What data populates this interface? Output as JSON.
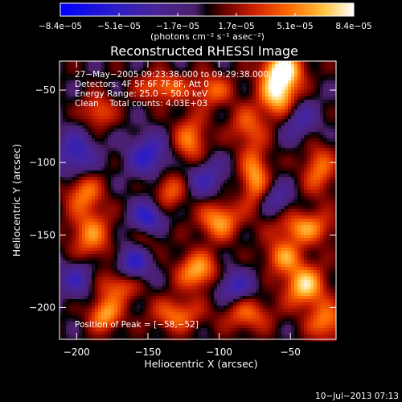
{
  "chart_data": {
    "type": "heatmap",
    "title": "Reconstructed RHESSI Image",
    "xlabel": "Heliocentric X (arcsec)",
    "ylabel": "Heliocentric Y (arcsec)",
    "xlim": [
      -212,
      -18
    ],
    "ylim": [
      -222,
      -30
    ],
    "x_ticks": [
      -200,
      -150,
      -100,
      -50
    ],
    "y_ticks": [
      -200,
      -150,
      -100,
      -50
    ],
    "x_tick_labels": [
      "−200",
      "−150",
      "−100",
      "−50"
    ],
    "y_tick_labels": [
      "−200",
      "−150",
      "−100",
      "−50"
    ],
    "colorbar": {
      "ticks": [
        "−8.4e−05",
        "−5.1e−05",
        "−1.7e−05",
        "1.7e−05",
        "5.1e−05",
        "8.4e−05"
      ],
      "range": [
        -8.4e-05,
        8.4e-05
      ],
      "unit_label": "(photons cm⁻² s⁻¹ asec⁻²)"
    },
    "annotations": [
      "27−May−2005 09:23:38.000 to 09:29:38.000",
      "Detectors: 4F 5F 6F 7F 8F, Att 0",
      "Energy Range: 25.0 − 50.0 keV",
      "Clean    Total counts: 4.03E+03"
    ],
    "peak_label": "Position of Peak = [−58,−52]",
    "peak": [
      -58,
      -52
    ],
    "sources": [
      {
        "x": -58,
        "y": -52,
        "amp": 1.0,
        "sx": 9,
        "sy": 12
      },
      {
        "x": -55,
        "y": -35,
        "amp": 0.8,
        "sx": 10,
        "sy": 8
      },
      {
        "x": -140,
        "y": -48,
        "amp": 0.55,
        "sx": 12,
        "sy": 7
      },
      {
        "x": -105,
        "y": -50,
        "amp": 0.5,
        "sx": 10,
        "sy": 8
      },
      {
        "x": -185,
        "y": -65,
        "amp": 0.5,
        "sx": 8,
        "sy": 8
      },
      {
        "x": -80,
        "y": -75,
        "amp": 0.45,
        "sx": 9,
        "sy": 10
      },
      {
        "x": -120,
        "y": -85,
        "amp": 0.6,
        "sx": 8,
        "sy": 12
      },
      {
        "x": -75,
        "y": -110,
        "amp": 0.7,
        "sx": 7,
        "sy": 14
      },
      {
        "x": -30,
        "y": -105,
        "amp": 0.55,
        "sx": 8,
        "sy": 12
      },
      {
        "x": -195,
        "y": -120,
        "amp": 0.6,
        "sx": 9,
        "sy": 10
      },
      {
        "x": -135,
        "y": -120,
        "amp": 0.5,
        "sx": 8,
        "sy": 9
      },
      {
        "x": -100,
        "y": -140,
        "amp": 0.7,
        "sx": 10,
        "sy": 9
      },
      {
        "x": -40,
        "y": -145,
        "amp": 0.65,
        "sx": 14,
        "sy": 8
      },
      {
        "x": -190,
        "y": -150,
        "amp": 0.6,
        "sx": 10,
        "sy": 12
      },
      {
        "x": -150,
        "y": -150,
        "amp": 0.45,
        "sx": 8,
        "sy": 8
      },
      {
        "x": -115,
        "y": -175,
        "amp": 0.75,
        "sx": 10,
        "sy": 9
      },
      {
        "x": -55,
        "y": -165,
        "amp": 0.6,
        "sx": 9,
        "sy": 8
      },
      {
        "x": -40,
        "y": -185,
        "amp": 0.85,
        "sx": 10,
        "sy": 10
      },
      {
        "x": -170,
        "y": -185,
        "amp": 0.55,
        "sx": 10,
        "sy": 8
      },
      {
        "x": -180,
        "y": -205,
        "amp": 0.7,
        "sx": 8,
        "sy": 8
      },
      {
        "x": -130,
        "y": -205,
        "amp": 0.55,
        "sx": 12,
        "sy": 8
      },
      {
        "x": -80,
        "y": -205,
        "amp": 0.5,
        "sx": 12,
        "sy": 8
      },
      {
        "x": -25,
        "y": -210,
        "amp": 0.6,
        "sx": 9,
        "sy": 9
      },
      {
        "x": -200,
        "y": -95,
        "amp": -0.55,
        "sx": 10,
        "sy": 12
      },
      {
        "x": -150,
        "y": -95,
        "amp": -0.6,
        "sx": 10,
        "sy": 10
      },
      {
        "x": -150,
        "y": -140,
        "amp": -0.8,
        "sx": 8,
        "sy": 9
      },
      {
        "x": -160,
        "y": -170,
        "amp": -0.6,
        "sx": 9,
        "sy": 9
      },
      {
        "x": -90,
        "y": -185,
        "amp": -0.5,
        "sx": 10,
        "sy": 8
      },
      {
        "x": -45,
        "y": -70,
        "amp": -0.45,
        "sx": 10,
        "sy": 10
      },
      {
        "x": -110,
        "y": -110,
        "amp": -0.45,
        "sx": 10,
        "sy": 10
      },
      {
        "x": -200,
        "y": -180,
        "amp": -0.45,
        "sx": 9,
        "sy": 9
      },
      {
        "x": -60,
        "y": -125,
        "amp": -0.4,
        "sx": 8,
        "sy": 8
      }
    ],
    "colormap": [
      [
        0.0,
        "#0000ff"
      ],
      [
        0.18,
        "#2a1cc8"
      ],
      [
        0.32,
        "#48259a"
      ],
      [
        0.46,
        "#4b1f6a"
      ],
      [
        0.5,
        "#000000"
      ],
      [
        0.56,
        "#6a0000"
      ],
      [
        0.66,
        "#cc1f00"
      ],
      [
        0.78,
        "#ff6a00"
      ],
      [
        0.9,
        "#ffc640"
      ],
      [
        1.0,
        "#ffffff"
      ]
    ]
  },
  "footer_date": "10−Jul−2013 07:13"
}
